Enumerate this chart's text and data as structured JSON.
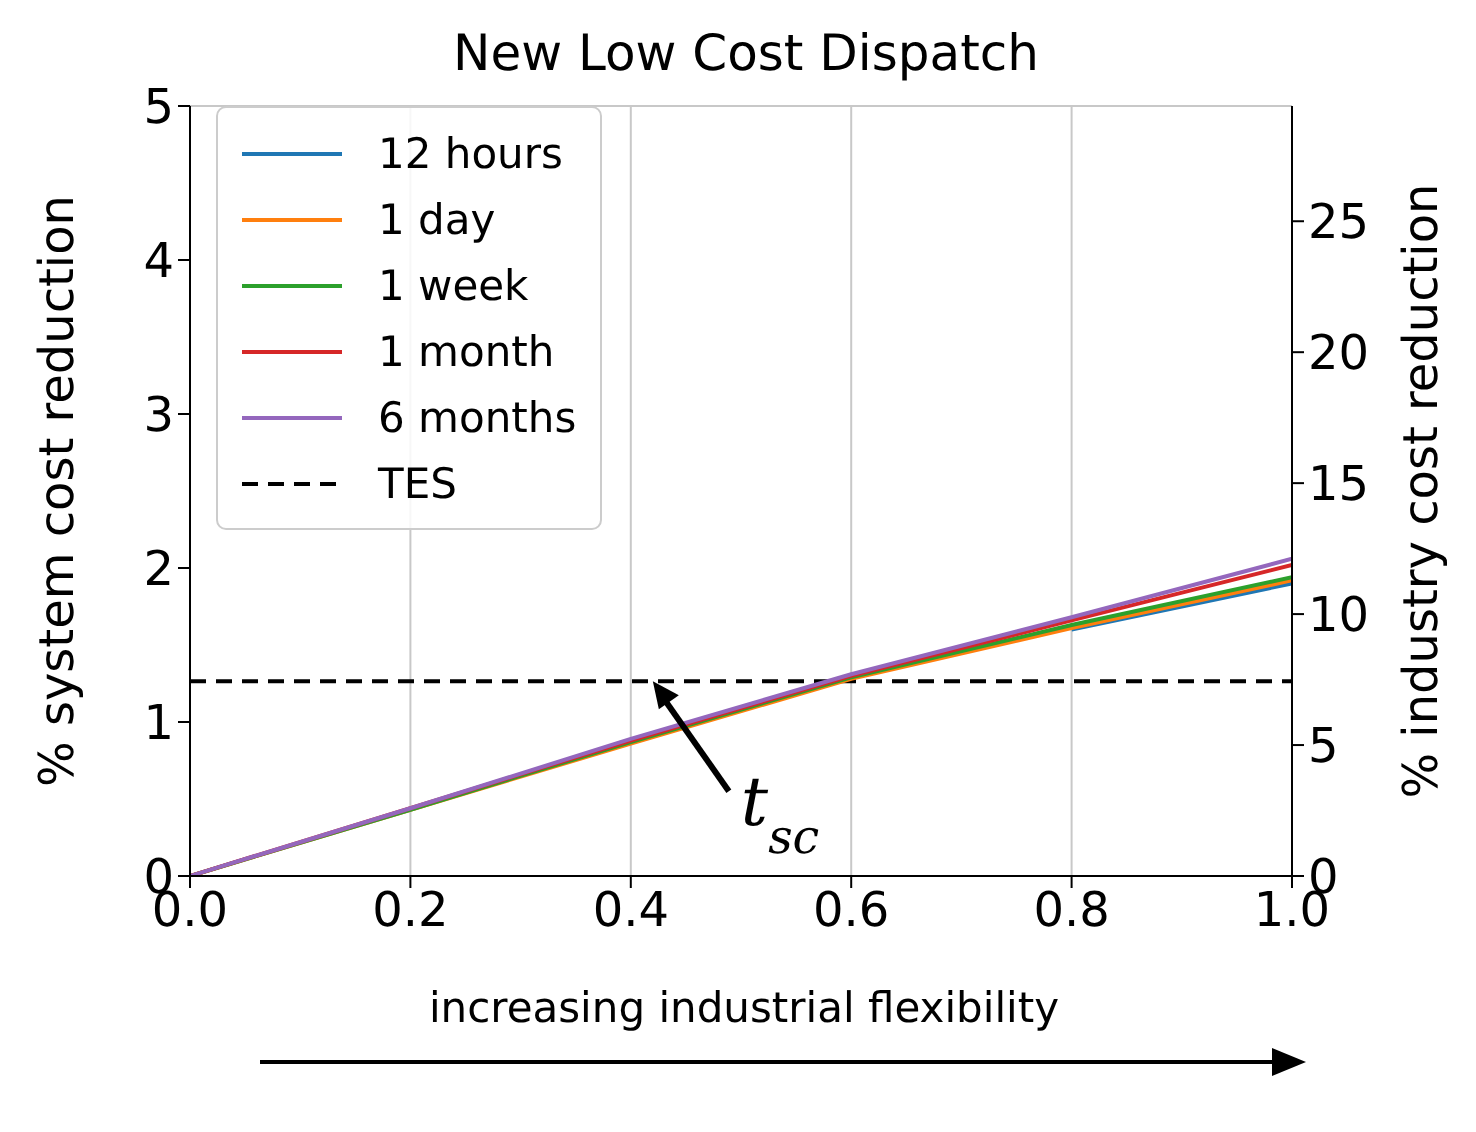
{
  "chart_data": {
    "type": "line",
    "title": "New Low Cost Dispatch",
    "xlabel": "increasing industrial flexibility",
    "ylabel": "% system cost reduction",
    "y2label": "% industry cost reduction",
    "x": [
      0,
      0.2,
      0.4,
      0.6,
      0.8,
      1.0
    ],
    "series": [
      {
        "name": "12 hours",
        "color": "#1f77b4",
        "values": [
          null,
          null,
          null,
          null,
          1.6,
          1.9
        ]
      },
      {
        "name": "1 day",
        "color": "#ff7f0e",
        "values": [
          0,
          0.43,
          0.86,
          1.28,
          1.61,
          1.92
        ]
      },
      {
        "name": "1 week",
        "color": "#2ca02c",
        "values": [
          0,
          0.43,
          0.87,
          1.29,
          1.63,
          1.94
        ]
      },
      {
        "name": "1 month",
        "color": "#d62728",
        "values": [
          0,
          0.44,
          0.88,
          1.3,
          1.66,
          2.02
        ]
      },
      {
        "name": "6 months",
        "color": "#9467bd",
        "values": [
          0,
          0.44,
          0.89,
          1.31,
          1.68,
          2.06
        ]
      }
    ],
    "ref_lines": [
      {
        "axis": "y",
        "value": 1.265,
        "label": "TES",
        "color": "#000000",
        "line_style": "dashed"
      }
    ],
    "annotations": [
      {
        "text": "t$_{sc}$",
        "x": 0.42,
        "y": 1.265
      }
    ],
    "xlim": [
      0,
      1
    ],
    "xticks": [
      {
        "value": 0,
        "label": "0.0"
      },
      0.2,
      0.4,
      0.6,
      0.8,
      {
        "value": 1,
        "label": "1.0"
      }
    ],
    "ylim": [
      0,
      5
    ],
    "yticks": [
      0,
      1,
      2,
      3,
      4,
      5
    ],
    "y2lim": [
      0,
      29.4
    ],
    "y2ticks": [
      0,
      5,
      10,
      15,
      20,
      25
    ],
    "grid": true,
    "legend": "top left",
    "marker": "none",
    "line_style": "solid"
  }
}
